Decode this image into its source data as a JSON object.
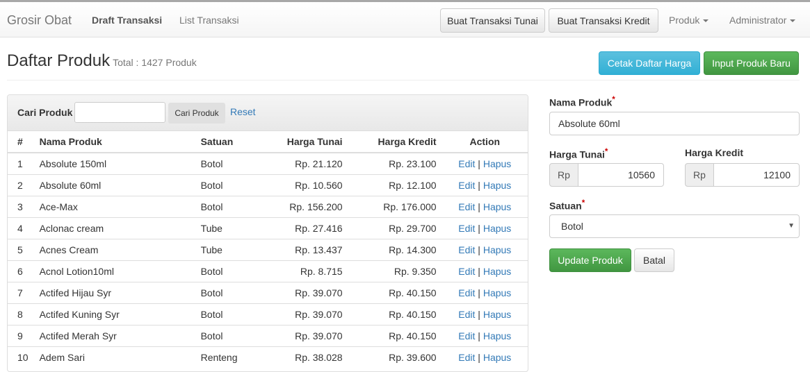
{
  "nav": {
    "brand": "Grosir Obat",
    "links": [
      "Draft Transaksi",
      "List Transaksi"
    ],
    "btn_tunai": "Buat Transaksi Tunai",
    "btn_kredit": "Buat Transaksi Kredit",
    "produk": "Produk",
    "admin": "Administrator"
  },
  "header": {
    "title": "Daftar Produk",
    "subtitle": "Total : 1427 Produk",
    "btn_cetak": "Cetak Daftar Harga",
    "btn_input": "Input Produk Baru"
  },
  "search": {
    "label": "Cari Produk",
    "value": "",
    "button": "Cari Produk",
    "reset": "Reset"
  },
  "table": {
    "headers": [
      "#",
      "Nama Produk",
      "Satuan",
      "Harga Tunai",
      "Harga Kredit",
      "Action"
    ],
    "edit": "Edit",
    "sep": "|",
    "hapus": "Hapus",
    "rows": [
      [
        "1",
        "Absolute 150ml",
        "Botol",
        "Rp. 21.120",
        "Rp. 23.100"
      ],
      [
        "2",
        "Absolute 60ml",
        "Botol",
        "Rp. 10.560",
        "Rp. 12.100"
      ],
      [
        "3",
        "Ace-Max",
        "Botol",
        "Rp. 156.200",
        "Rp. 176.000"
      ],
      [
        "4",
        "Aclonac cream",
        "Tube",
        "Rp. 27.416",
        "Rp. 29.700"
      ],
      [
        "5",
        "Acnes Cream",
        "Tube",
        "Rp. 13.437",
        "Rp. 14.300"
      ],
      [
        "6",
        "Acnol Lotion10ml",
        "Botol",
        "Rp. 8.715",
        "Rp. 9.350"
      ],
      [
        "7",
        "Actifed Hijau Syr",
        "Botol",
        "Rp. 39.070",
        "Rp. 40.150"
      ],
      [
        "8",
        "Actifed Kuning Syr",
        "Botol",
        "Rp. 39.070",
        "Rp. 40.150"
      ],
      [
        "9",
        "Actifed Merah Syr",
        "Botol",
        "Rp. 39.070",
        "Rp. 40.150"
      ],
      [
        "10",
        "Adem Sari",
        "Renteng",
        "Rp. 38.028",
        "Rp. 39.600"
      ]
    ]
  },
  "form": {
    "nama_label": "Nama Produk",
    "nama_value": "Absolute 60ml",
    "tunai_label": "Harga Tunai",
    "tunai_value": "10560",
    "kredit_label": "Harga Kredit",
    "kredit_value": "12100",
    "currency": "Rp",
    "satuan_label": "Satuan",
    "satuan_value": "Botol",
    "required": "*",
    "update": "Update Produk",
    "batal": "Batal"
  }
}
